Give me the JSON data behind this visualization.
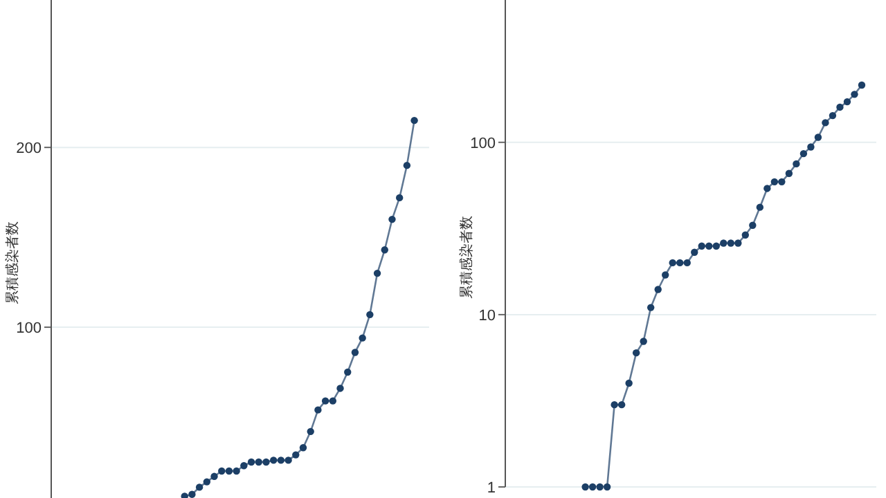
{
  "chart_data": [
    {
      "type": "line",
      "ylabel": "累積感染者数",
      "categories": [
        null,
        null,
        null,
        null,
        null,
        null,
        null,
        null,
        null,
        null,
        null,
        null,
        null,
        null,
        null,
        null,
        null,
        null,
        null,
        null,
        null,
        null,
        null,
        null,
        null,
        null,
        null,
        null,
        null,
        null,
        null,
        null,
        null,
        null,
        null,
        null,
        null,
        null,
        null
      ],
      "series": [
        {
          "color": "#1c3f66",
          "values": [
            null,
            null,
            null,
            null,
            null,
            null,
            null,
            6,
            7,
            11,
            14,
            17,
            20,
            20,
            20,
            23,
            25,
            25,
            25,
            26,
            26,
            26,
            29,
            33,
            42,
            54,
            59,
            59,
            66,
            75,
            86,
            94,
            107,
            130,
            143,
            160,
            172,
            190,
            215
          ]
        }
      ],
      "ylim": [
        5,
        282
      ],
      "yticks": [
        100,
        200
      ],
      "grid": "y",
      "marker": "circle",
      "tick_labels": "y"
    },
    {
      "type": "line",
      "ylabel": "累積感染者数",
      "log": true,
      "categories": [
        null,
        null,
        null,
        null,
        null,
        null,
        null,
        null,
        null,
        null,
        null,
        null,
        null,
        null,
        null,
        null,
        null,
        null,
        null,
        null,
        null,
        null,
        null,
        null,
        null,
        null,
        null,
        null,
        null,
        null,
        null,
        null,
        null,
        null,
        null,
        null,
        null,
        null,
        null
      ],
      "series": [
        {
          "color": "#1c3f66",
          "values": [
            1,
            1,
            1,
            1,
            3,
            3,
            4,
            6,
            7,
            11,
            14,
            17,
            20,
            20,
            20,
            23,
            25,
            25,
            25,
            26,
            26,
            26,
            29,
            33,
            42,
            54,
            59,
            59,
            66,
            75,
            86,
            94,
            107,
            130,
            143,
            160,
            172,
            190,
            215
          ]
        }
      ],
      "ylim": [
        1,
        670
      ],
      "yticks": [
        1,
        10,
        100
      ],
      "grid": "y",
      "marker": "circle",
      "tick_labels": "y"
    }
  ]
}
